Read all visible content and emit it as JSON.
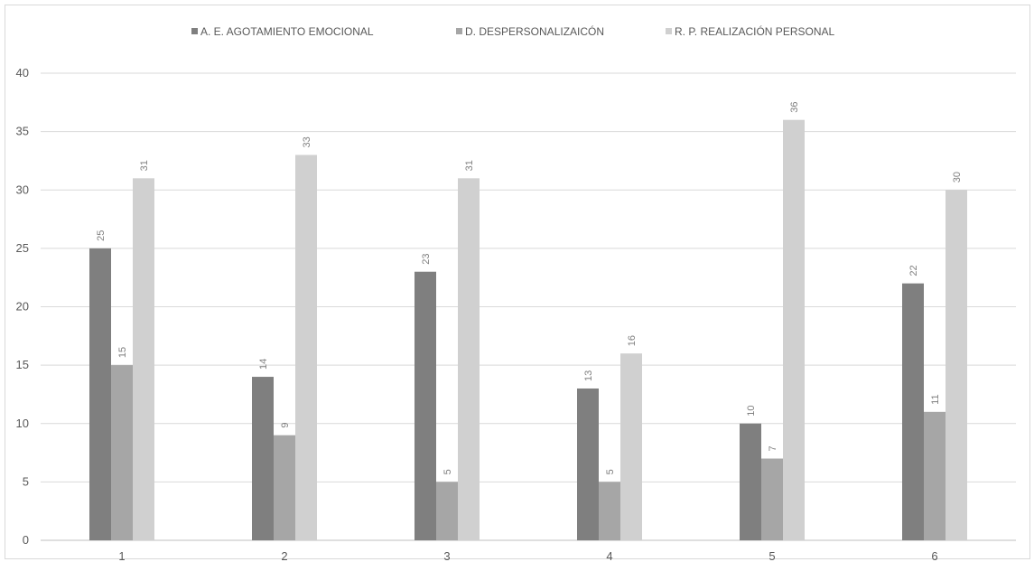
{
  "chart_data": {
    "type": "bar",
    "title": "",
    "xlabel": "",
    "ylabel": "",
    "categories": [
      "1",
      "2",
      "3",
      "4",
      "5",
      "6"
    ],
    "series": [
      {
        "name": "A. E. AGOTAMIENTO EMOCIONAL",
        "values": [
          25,
          14,
          23,
          13,
          10,
          22
        ],
        "color": "#7f7f7f"
      },
      {
        "name": "D. DESPERSONALIZAICÓN",
        "values": [
          15,
          9,
          5,
          5,
          7,
          11
        ],
        "color": "#a6a6a6"
      },
      {
        "name": "R. P. REALIZACIÓN PERSONAL",
        "values": [
          31,
          33,
          31,
          16,
          36,
          30
        ],
        "color": "#d0d0d0"
      }
    ],
    "ylim": [
      0,
      40
    ],
    "yticks": [
      0,
      5,
      10,
      15,
      20,
      25,
      30,
      35,
      40
    ],
    "grid": true,
    "legend": "top-center",
    "data_labels": true,
    "data_label_orientation": "vertical"
  }
}
